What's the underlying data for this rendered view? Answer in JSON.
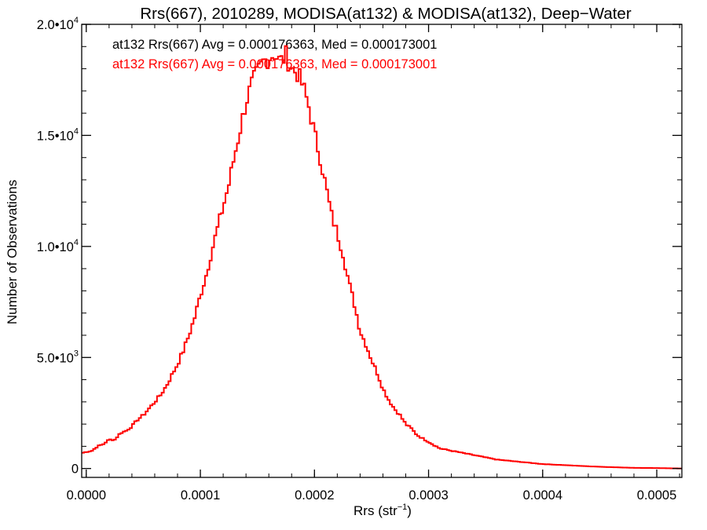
{
  "chart_data": {
    "type": "line",
    "style": "histogram-step",
    "title": "Rrs(667), 2010289, MODISA(at132) & MODISA(at132), Deep−Water",
    "xlabel": {
      "base": "Rrs (str",
      "sup": "−1",
      "close": ")"
    },
    "ylabel": "Number of Observations",
    "xlim": [
      -4e-06,
      0.000522
    ],
    "ylim": [
      -400,
      20000
    ],
    "grid": false,
    "legend_position": "top-left",
    "xticks": [
      {
        "value": 0.0,
        "label": "0.0000"
      },
      {
        "value": 0.0001,
        "label": "0.0001"
      },
      {
        "value": 0.0002,
        "label": "0.0002"
      },
      {
        "value": 0.0003,
        "label": "0.0003"
      },
      {
        "value": 0.0004,
        "label": "0.0004"
      },
      {
        "value": 0.0005,
        "label": "0.0005"
      }
    ],
    "yticks": [
      {
        "value": 0,
        "base": "0",
        "sup": ""
      },
      {
        "value": 5000,
        "base": "5.0•10",
        "sup": "3"
      },
      {
        "value": 10000,
        "base": "1.0•10",
        "sup": "4"
      },
      {
        "value": 15000,
        "base": "1.5•10",
        "sup": "4"
      },
      {
        "value": 20000,
        "base": "2.0•10",
        "sup": "4"
      }
    ],
    "annotations": [
      {
        "text": "at132 Rrs(667) Avg = 0.000176363, Med = 0.000173001",
        "color": "#000000"
      },
      {
        "text": "at132 Rrs(667) Avg = 0.000176363, Med = 0.000173001",
        "color": "#ff0000"
      }
    ],
    "series": [
      {
        "color": "#ff0000",
        "bin_width": 2e-06,
        "x": [
          -4e-06,
          5e-06,
          1e-05,
          1.5e-05,
          2e-05,
          2.5e-05,
          3e-05,
          3.5e-05,
          4e-05,
          4.5e-05,
          5e-05,
          5.5e-05,
          6e-05,
          6.5e-05,
          7e-05,
          7.5e-05,
          8e-05,
          8.5e-05,
          9e-05,
          9.5e-05,
          0.0001,
          0.000105,
          0.00011,
          0.000115,
          0.00012,
          0.000125,
          0.00013,
          0.000135,
          0.00014,
          0.000145,
          0.00015,
          0.000155,
          0.00016,
          0.000165,
          0.00017,
          0.000175,
          0.00018,
          0.000185,
          0.00019,
          0.000195,
          0.0002,
          0.000205,
          0.00021,
          0.000215,
          0.00022,
          0.000225,
          0.00023,
          0.000235,
          0.00024,
          0.000245,
          0.00025,
          0.000255,
          0.00026,
          0.000265,
          0.00027,
          0.000275,
          0.00028,
          0.000285,
          0.00029,
          0.0003,
          0.00031,
          0.00032,
          0.00033,
          0.00034,
          0.00035,
          0.00036,
          0.00038,
          0.0004,
          0.00042,
          0.00044,
          0.00046,
          0.00048,
          0.0005,
          0.000522
        ],
        "y": [
          700,
          800,
          1000,
          1100,
          1300,
          1300,
          1600,
          1700,
          1900,
          2200,
          2400,
          2700,
          3000,
          3300,
          3700,
          4200,
          4700,
          5300,
          6000,
          6800,
          7800,
          8700,
          9800,
          10800,
          11800,
          12800,
          14100,
          15300,
          16500,
          17300,
          17800,
          18300,
          18500,
          18700,
          18300,
          18600,
          18000,
          17800,
          17200,
          16300,
          15100,
          14000,
          12700,
          11400,
          10600,
          9700,
          8400,
          7400,
          6200,
          5600,
          4900,
          4300,
          3600,
          3100,
          2700,
          2400,
          2000,
          1800,
          1500,
          1200,
          900,
          800,
          700,
          600,
          500,
          400,
          300,
          200,
          150,
          100,
          60,
          30,
          20,
          0
        ]
      }
    ]
  }
}
